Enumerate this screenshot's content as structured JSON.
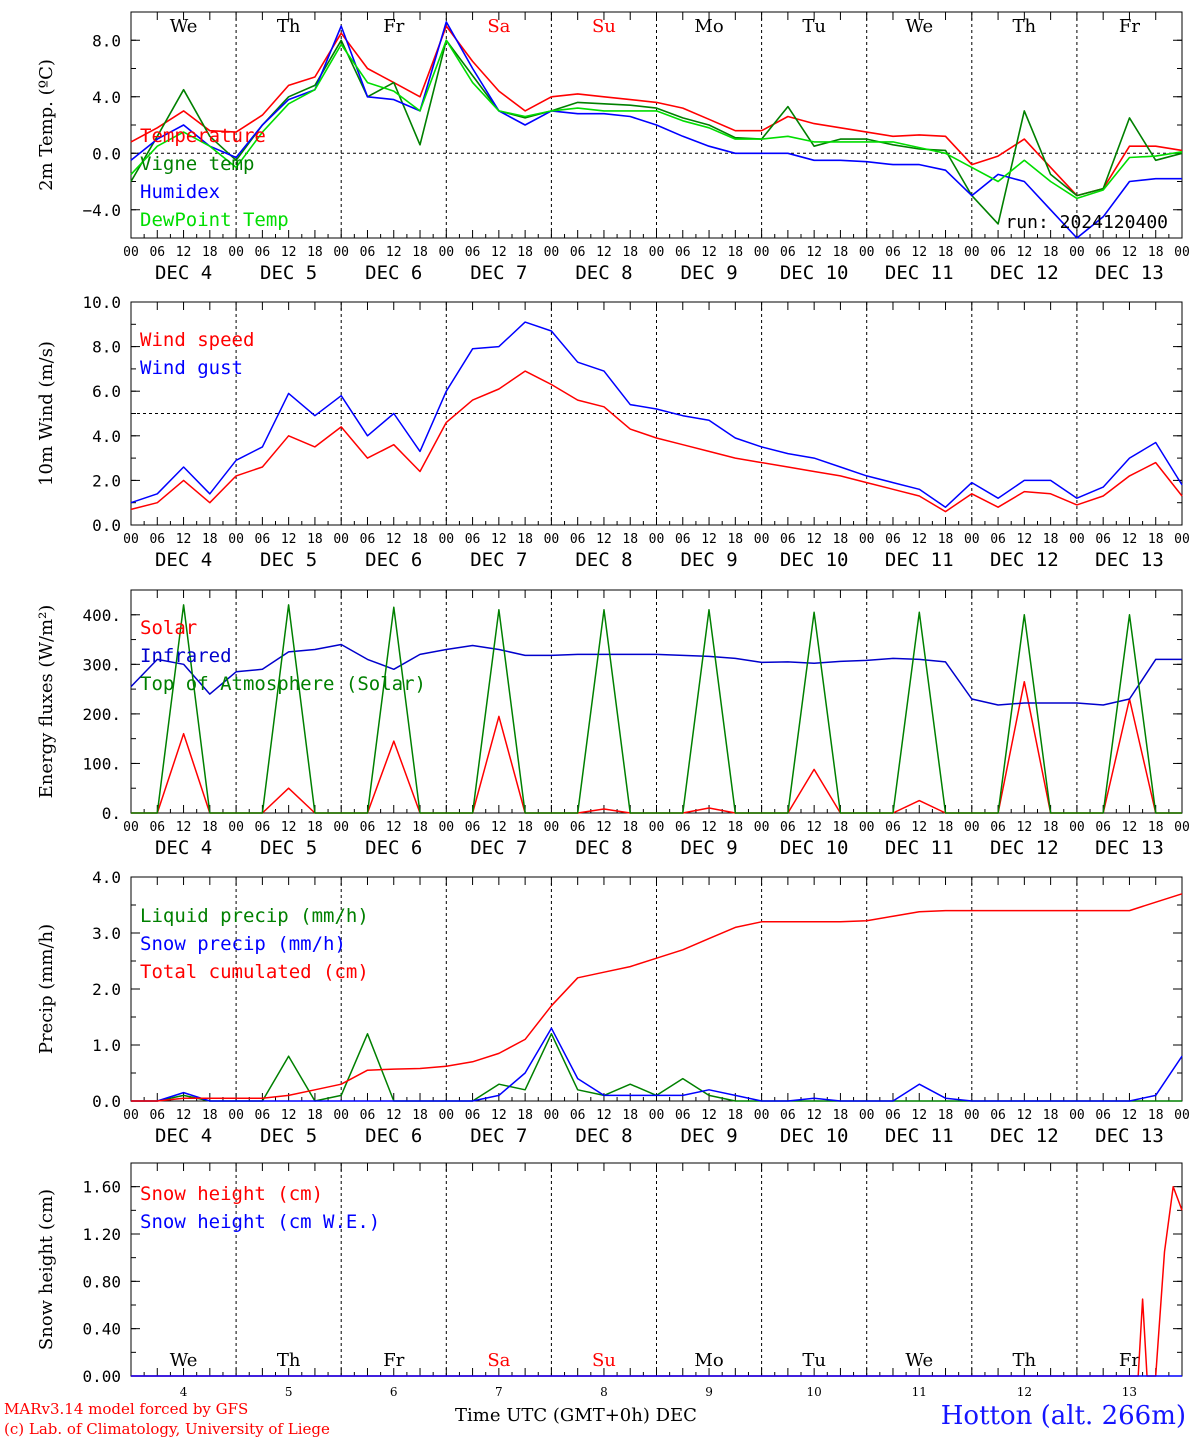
{
  "chart_data": [
    {
      "type": "line",
      "ylabel": "2m Temp. (ºC)",
      "ylim": [
        -6,
        10
      ],
      "yticks": [
        -4,
        0,
        4,
        8
      ],
      "ytick_labels": [
        "−4.0",
        "0.0",
        "4.0",
        "8.0"
      ],
      "ref_line": 0,
      "day_labels": [
        "We",
        "Th",
        "Fr",
        "Sa",
        "Su",
        "Mo",
        "Tu",
        "We",
        "Th",
        "Fr"
      ],
      "weekend_color": "#ff0000",
      "annotation": "run: 2024120400",
      "x": [
        0,
        6,
        12,
        18,
        24,
        30,
        36,
        42,
        48,
        54,
        60,
        66,
        72,
        78,
        84,
        90,
        96,
        102,
        108,
        114,
        120,
        126,
        132,
        138,
        144,
        150,
        156,
        162,
        168,
        174,
        180,
        186,
        192,
        198,
        204,
        210,
        216,
        222,
        228,
        234,
        240
      ],
      "series": [
        {
          "name": "Temperature",
          "color": "#ff0000",
          "values": [
            0.8,
            1.8,
            3.0,
            1.6,
            1.5,
            2.7,
            4.8,
            5.4,
            8.5,
            6.0,
            5.0,
            4.0,
            9.0,
            6.5,
            4.4,
            3.0,
            4.0,
            4.2,
            4.0,
            3.8,
            3.6,
            3.2,
            2.4,
            1.6,
            1.6,
            2.6,
            2.1,
            1.8,
            1.5,
            1.2,
            1.3,
            1.2,
            -0.8,
            -0.2,
            1.0,
            -1.0,
            -3.0,
            -2.5,
            0.5,
            0.5,
            0.2
          ]
        },
        {
          "name": "Vigne temp",
          "color": "#008000",
          "values": [
            -2.0,
            1.2,
            4.5,
            1.2,
            -0.5,
            2.0,
            4.0,
            4.8,
            8.0,
            4.0,
            5.0,
            0.6,
            8.0,
            5.5,
            3.0,
            2.5,
            3.0,
            3.6,
            3.5,
            3.4,
            3.2,
            2.5,
            2.0,
            1.1,
            1.0,
            3.3,
            0.5,
            1.0,
            1.0,
            0.6,
            0.3,
            0.2,
            -3.0,
            -5.0,
            3.0,
            -1.5,
            -3.0,
            -2.5,
            2.5,
            -0.5,
            0.0
          ]
        },
        {
          "name": "Humidex",
          "color": "#0000ff",
          "values": [
            -0.5,
            1.0,
            2.0,
            0.5,
            -0.3,
            2.0,
            3.8,
            4.5,
            9.0,
            4.0,
            3.8,
            3.0,
            9.3,
            6.0,
            3.0,
            2.0,
            3.0,
            2.8,
            2.8,
            2.6,
            2.0,
            1.2,
            0.5,
            0.0,
            0.0,
            0.0,
            -0.5,
            -0.5,
            -0.6,
            -0.8,
            -0.8,
            -1.2,
            -3.0,
            -1.5,
            -2.0,
            -4.0,
            -6.0,
            -4.5,
            -2.0,
            -1.8,
            -1.8
          ]
        },
        {
          "name": "DewPoint Temp",
          "color": "#00dd00",
          "values": [
            -1.5,
            0.5,
            1.5,
            0.5,
            -1.0,
            1.5,
            3.5,
            4.5,
            7.7,
            5.0,
            4.4,
            3.0,
            8.0,
            5.0,
            3.0,
            2.6,
            3.0,
            3.2,
            3.0,
            3.0,
            3.0,
            2.3,
            1.8,
            1.0,
            1.0,
            1.2,
            0.8,
            0.8,
            0.8,
            0.8,
            0.4,
            0.0,
            -1.0,
            -2.0,
            -0.5,
            -2.0,
            -3.2,
            -2.6,
            -0.3,
            -0.2,
            0.1
          ]
        }
      ]
    },
    {
      "type": "line",
      "ylabel": "10m Wind (m/s)",
      "ylim": [
        0,
        10
      ],
      "yticks": [
        0,
        2,
        4,
        6,
        8,
        10
      ],
      "ytick_labels": [
        "0.0",
        "2.0",
        "4.0",
        "6.0",
        "8.0",
        "10.0"
      ],
      "ref_line": 5,
      "x": [
        0,
        6,
        12,
        18,
        24,
        30,
        36,
        42,
        48,
        54,
        60,
        66,
        72,
        78,
        84,
        90,
        96,
        102,
        108,
        114,
        120,
        126,
        132,
        138,
        144,
        150,
        156,
        162,
        168,
        174,
        180,
        186,
        192,
        198,
        204,
        210,
        216,
        222,
        228,
        234,
        240
      ],
      "series": [
        {
          "name": "Wind speed",
          "color": "#ff0000",
          "values": [
            0.7,
            1.0,
            2.0,
            1.0,
            2.2,
            2.6,
            4.0,
            3.5,
            4.4,
            3.0,
            3.6,
            2.4,
            4.6,
            5.6,
            6.1,
            6.9,
            6.3,
            5.6,
            5.3,
            4.3,
            3.9,
            3.6,
            3.3,
            3.0,
            2.8,
            2.6,
            2.4,
            2.2,
            1.9,
            1.6,
            1.3,
            0.6,
            1.4,
            0.8,
            1.5,
            1.4,
            0.9,
            1.3,
            2.2,
            2.8,
            1.3
          ]
        },
        {
          "name": "Wind gust",
          "color": "#0000ff",
          "values": [
            1.0,
            1.4,
            2.6,
            1.4,
            2.9,
            3.5,
            5.9,
            4.9,
            5.8,
            4.0,
            5.0,
            3.3,
            6.0,
            7.9,
            8.0,
            9.1,
            8.7,
            7.3,
            6.9,
            5.4,
            5.2,
            4.9,
            4.7,
            3.9,
            3.5,
            3.2,
            3.0,
            2.6,
            2.2,
            1.9,
            1.6,
            0.8,
            1.9,
            1.2,
            2.0,
            2.0,
            1.2,
            1.7,
            3.0,
            3.7,
            1.8
          ]
        }
      ]
    },
    {
      "type": "line",
      "ylabel": "Energy fluxes (W/m²)",
      "ylim": [
        0,
        450
      ],
      "yticks": [
        0,
        100,
        200,
        300,
        400
      ],
      "ytick_labels": [
        "0.",
        "100.",
        "200.",
        "300.",
        "400."
      ],
      "x": [
        0,
        6,
        12,
        18,
        24,
        30,
        36,
        42,
        48,
        54,
        60,
        66,
        72,
        78,
        84,
        90,
        96,
        102,
        108,
        114,
        120,
        126,
        132,
        138,
        144,
        150,
        156,
        162,
        168,
        174,
        180,
        186,
        192,
        198,
        204,
        210,
        216,
        222,
        228,
        234,
        240
      ],
      "series": [
        {
          "name": "Solar",
          "color": "#ff0000",
          "values": [
            0,
            0,
            160,
            0,
            0,
            0,
            50,
            0,
            0,
            0,
            145,
            0,
            0,
            0,
            195,
            0,
            0,
            0,
            8,
            0,
            0,
            0,
            10,
            0,
            0,
            0,
            88,
            0,
            0,
            0,
            25,
            0,
            0,
            0,
            265,
            0,
            0,
            0,
            230,
            0,
            0
          ]
        },
        {
          "name": "Infrared",
          "color": "#0000cc",
          "values": [
            255,
            310,
            300,
            240,
            285,
            290,
            325,
            330,
            340,
            310,
            290,
            320,
            330,
            338,
            330,
            318,
            318,
            320,
            320,
            320,
            320,
            318,
            316,
            312,
            304,
            305,
            302,
            306,
            308,
            312,
            310,
            305,
            230,
            218,
            222,
            222,
            222,
            218,
            230,
            310,
            310
          ]
        },
        {
          "name": "Top of Atmosphere (Solar)",
          "color": "#008000",
          "values": [
            0,
            0,
            420,
            0,
            0,
            0,
            420,
            0,
            0,
            0,
            415,
            0,
            0,
            0,
            410,
            0,
            0,
            0,
            410,
            0,
            0,
            0,
            410,
            0,
            0,
            0,
            405,
            0,
            0,
            0,
            405,
            0,
            0,
            0,
            400,
            0,
            0,
            0,
            400,
            0,
            0
          ]
        }
      ]
    },
    {
      "type": "line",
      "ylabel": "Precip (mm/h)",
      "ylim": [
        0,
        4
      ],
      "yticks": [
        0,
        1,
        2,
        3,
        4
      ],
      "ytick_labels": [
        "0.0",
        "1.0",
        "2.0",
        "3.0",
        "4.0"
      ],
      "x": [
        0,
        6,
        12,
        18,
        24,
        30,
        36,
        42,
        48,
        54,
        60,
        66,
        72,
        78,
        84,
        90,
        96,
        102,
        108,
        114,
        120,
        126,
        132,
        138,
        144,
        150,
        156,
        162,
        168,
        174,
        180,
        186,
        192,
        198,
        204,
        210,
        216,
        222,
        228,
        234,
        240
      ],
      "series": [
        {
          "name": "Liquid precip (mm/h)",
          "color": "#008000",
          "values": [
            0,
            0,
            0.1,
            0,
            0,
            0,
            0.8,
            0,
            0.1,
            1.2,
            0,
            0,
            0,
            0,
            0.3,
            0.2,
            1.2,
            0.2,
            0.1,
            0.3,
            0.1,
            0.4,
            0.1,
            0,
            0,
            0,
            0,
            0,
            0,
            0,
            0,
            0,
            0,
            0,
            0,
            0,
            0,
            0,
            0,
            0,
            0
          ]
        },
        {
          "name": "Snow precip (mm/h)",
          "color": "#0000ff",
          "values": [
            0,
            0,
            0.15,
            0,
            0,
            0,
            0,
            0,
            0,
            0,
            0,
            0,
            0,
            0,
            0.1,
            0.5,
            1.3,
            0.4,
            0.1,
            0.1,
            0.1,
            0.1,
            0.2,
            0.1,
            0,
            0,
            0.05,
            0,
            0,
            0,
            0.3,
            0.05,
            0,
            0,
            0,
            0,
            0,
            0,
            0,
            0.1,
            0.8
          ]
        },
        {
          "name": "Total cumulated (cm)",
          "color": "#ff0000",
          "values": [
            0,
            0,
            0.05,
            0.05,
            0.05,
            0.05,
            0.1,
            0.2,
            0.3,
            0.55,
            0.57,
            0.58,
            0.62,
            0.7,
            0.85,
            1.1,
            1.7,
            2.2,
            2.3,
            2.4,
            2.55,
            2.7,
            2.9,
            3.1,
            3.2,
            3.2,
            3.2,
            3.2,
            3.22,
            3.3,
            3.38,
            3.4,
            3.4,
            3.4,
            3.4,
            3.4,
            3.4,
            3.4,
            3.4,
            3.55,
            3.7
          ]
        }
      ]
    },
    {
      "type": "line",
      "ylabel": "Snow height (cm)",
      "ylim": [
        0,
        1.8
      ],
      "yticks": [
        0,
        0.4,
        0.8,
        1.2,
        1.6
      ],
      "ytick_labels": [
        "0.00",
        "0.40",
        "0.80",
        "1.20",
        "1.60"
      ],
      "day_labels": [
        "We",
        "Th",
        "Fr",
        "Sa",
        "Su",
        "Mo",
        "Tu",
        "We",
        "Th",
        "Fr"
      ],
      "weekend_color": "#ff0000",
      "day_numbers": [
        "4",
        "5",
        "6",
        "7",
        "8",
        "9",
        "10",
        "11",
        "12",
        "13"
      ],
      "x": [
        0,
        24,
        48,
        72,
        96,
        120,
        144,
        168,
        192,
        216,
        228,
        230,
        231,
        232,
        234,
        236,
        238,
        240
      ],
      "series": [
        {
          "name": "Snow height (cm)",
          "color": "#ff0000",
          "values": [
            0,
            0,
            0,
            0,
            0,
            0,
            0,
            0,
            0,
            0,
            0,
            0,
            0.65,
            0,
            0,
            1.05,
            1.6,
            1.4
          ]
        },
        {
          "name": "Snow height (cm W.E.)",
          "color": "#0000ff",
          "values": [
            0,
            0,
            0,
            0,
            0,
            0,
            0,
            0,
            0,
            0,
            0,
            0,
            0,
            0,
            0,
            0,
            0,
            0
          ]
        }
      ]
    }
  ],
  "x_axis": {
    "hour_labels": [
      "00",
      "06",
      "12",
      "18"
    ],
    "final_hour_label": "00",
    "day_labels": [
      "DEC  4",
      "DEC  5",
      "DEC  6",
      "DEC  7",
      "DEC  8",
      "DEC  9",
      "DEC 10",
      "DEC 11",
      "DEC 12",
      "DEC 13"
    ]
  },
  "footer": {
    "model": "MARv3.14 model forced by GFS",
    "copyright": "(c) Lab. of Climatology, University of Liege",
    "time_label": "Time UTC (GMT+0h) DEC",
    "station": "Hotton (alt. 266m)"
  }
}
